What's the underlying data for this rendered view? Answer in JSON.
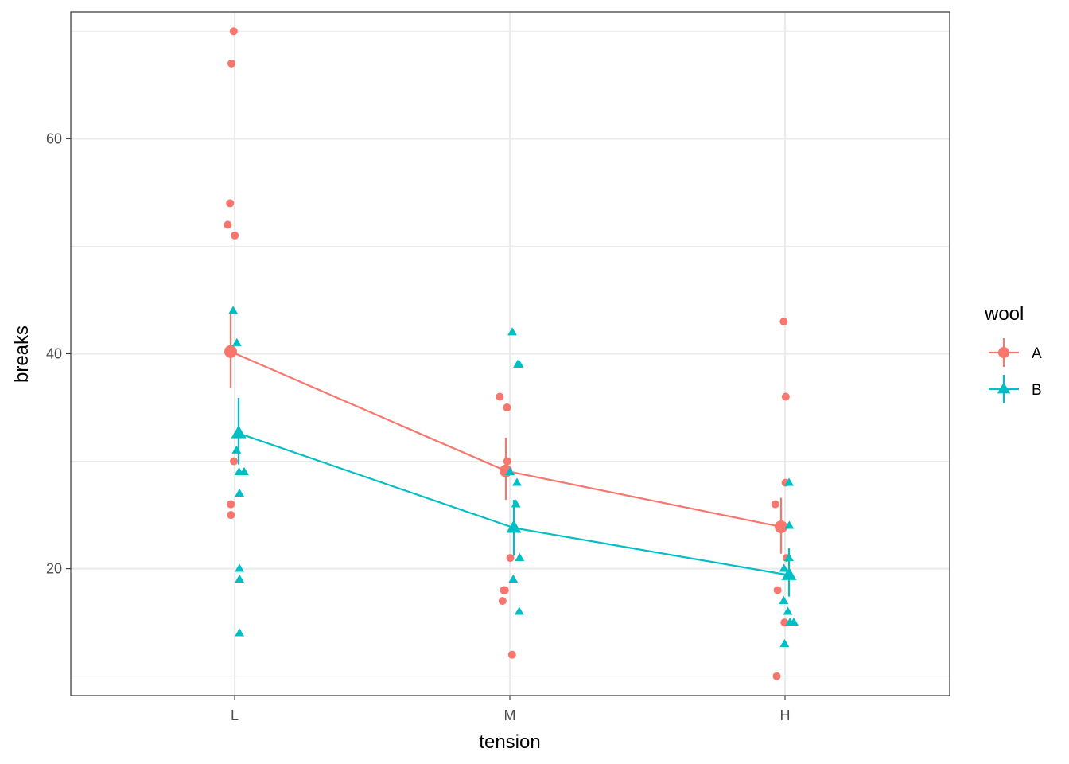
{
  "chart_data": {
    "type": "scatter",
    "xlabel": "tension",
    "ylabel": "breaks",
    "categories": [
      "L",
      "M",
      "H"
    ],
    "ylim": [
      8.2,
      71.8
    ],
    "yticks": [
      20,
      40,
      60
    ],
    "yticks_minor": [
      10,
      30,
      50,
      70
    ],
    "grid": true,
    "legend": {
      "title": "wool",
      "position": "right"
    },
    "series": [
      {
        "name": "A",
        "color": "#F8766D",
        "shape": "circle",
        "points": [
          {
            "x": "L",
            "y": 70
          },
          {
            "x": "L",
            "y": 67
          },
          {
            "x": "L",
            "y": 54
          },
          {
            "x": "L",
            "y": 52
          },
          {
            "x": "L",
            "y": 51
          },
          {
            "x": "L",
            "y": 30
          },
          {
            "x": "L",
            "y": 26
          },
          {
            "x": "L",
            "y": 26
          },
          {
            "x": "L",
            "y": 25
          },
          {
            "x": "M",
            "y": 36
          },
          {
            "x": "M",
            "y": 35
          },
          {
            "x": "M",
            "y": 30
          },
          {
            "x": "M",
            "y": 29
          },
          {
            "x": "M",
            "y": 21
          },
          {
            "x": "M",
            "y": 18
          },
          {
            "x": "M",
            "y": 18
          },
          {
            "x": "M",
            "y": 17
          },
          {
            "x": "M",
            "y": 12
          },
          {
            "x": "H",
            "y": 43
          },
          {
            "x": "H",
            "y": 36
          },
          {
            "x": "H",
            "y": 28
          },
          {
            "x": "H",
            "y": 26
          },
          {
            "x": "H",
            "y": 24
          },
          {
            "x": "H",
            "y": 21
          },
          {
            "x": "H",
            "y": 18
          },
          {
            "x": "H",
            "y": 15
          },
          {
            "x": "H",
            "y": 10
          }
        ],
        "means": [
          {
            "x": "L",
            "y": 40.2,
            "ymin": 36.8,
            "ymax": 43.9
          },
          {
            "x": "M",
            "y": 29.1,
            "ymin": 26.4,
            "ymax": 32.2
          },
          {
            "x": "H",
            "y": 23.9,
            "ymin": 21.4,
            "ymax": 26.6
          }
        ]
      },
      {
        "name": "B",
        "color": "#00BFC4",
        "shape": "triangle",
        "points": [
          {
            "x": "L",
            "y": 44
          },
          {
            "x": "L",
            "y": 41
          },
          {
            "x": "L",
            "y": 31
          },
          {
            "x": "L",
            "y": 29
          },
          {
            "x": "L",
            "y": 29
          },
          {
            "x": "L",
            "y": 27
          },
          {
            "x": "L",
            "y": 20
          },
          {
            "x": "L",
            "y": 19
          },
          {
            "x": "L",
            "y": 14
          },
          {
            "x": "M",
            "y": 42
          },
          {
            "x": "M",
            "y": 39
          },
          {
            "x": "M",
            "y": 39
          },
          {
            "x": "M",
            "y": 29
          },
          {
            "x": "M",
            "y": 28
          },
          {
            "x": "M",
            "y": 26
          },
          {
            "x": "M",
            "y": 21
          },
          {
            "x": "M",
            "y": 19
          },
          {
            "x": "M",
            "y": 16
          },
          {
            "x": "H",
            "y": 28
          },
          {
            "x": "H",
            "y": 24
          },
          {
            "x": "H",
            "y": 21
          },
          {
            "x": "H",
            "y": 20
          },
          {
            "x": "H",
            "y": 17
          },
          {
            "x": "H",
            "y": 16
          },
          {
            "x": "H",
            "y": 15
          },
          {
            "x": "H",
            "y": 15
          },
          {
            "x": "H",
            "y": 13
          }
        ],
        "means": [
          {
            "x": "L",
            "y": 32.6,
            "ymin": 29.7,
            "ymax": 35.9
          },
          {
            "x": "M",
            "y": 23.8,
            "ymin": 21.2,
            "ymax": 26.4
          },
          {
            "x": "H",
            "y": 19.4,
            "ymin": 17.4,
            "ymax": 21.9
          }
        ]
      }
    ]
  }
}
